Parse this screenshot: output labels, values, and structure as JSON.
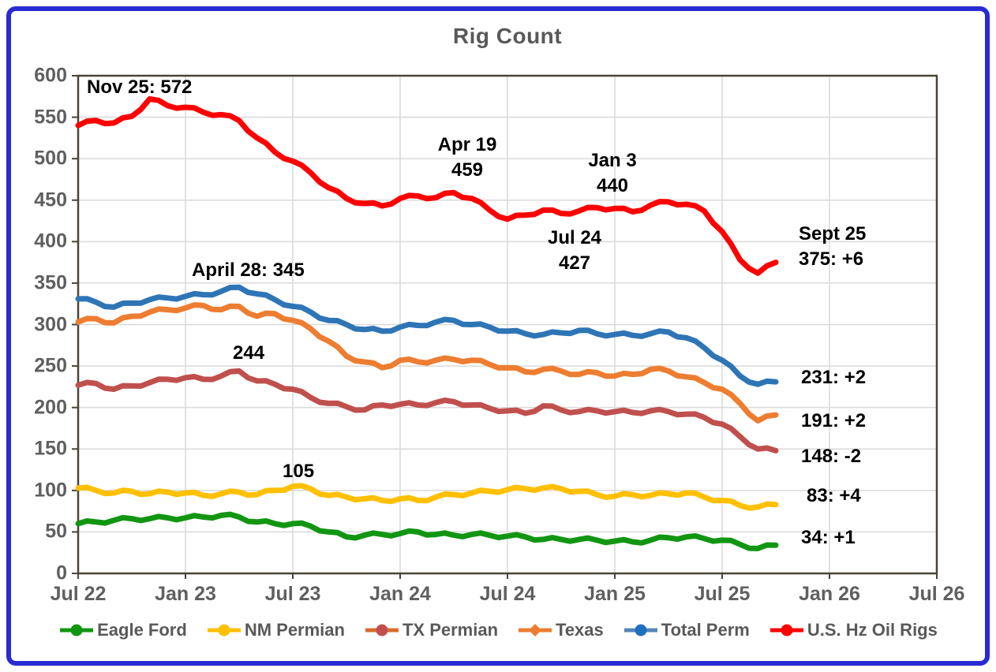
{
  "title": "Rig Count",
  "colors": {
    "frame_blue": "#2a2ad2",
    "axis": "#4a4537",
    "grid": "#d9d9d9",
    "tick_label": "#5f5f5f",
    "title_gray": "#595959",
    "annotation": "#000000"
  },
  "chart_data": {
    "type": "line",
    "title": "Rig Count",
    "grid": true,
    "legend_position": "bottom",
    "y_min": 0,
    "y_max": 600,
    "y_step": 50,
    "y_tick_labels": [
      "600",
      "550",
      "500",
      "450",
      "400",
      "350",
      "300",
      "250",
      "200",
      "150",
      "100",
      "50",
      "0"
    ],
    "x_tick_labels": [
      "Jul 22",
      "Jan 23",
      "Jul 23",
      "Jan 24",
      "Jul 24",
      "Jan 25",
      "Jul 25",
      "Jan 26",
      "Jul 26"
    ],
    "x_span_months": 48,
    "series": [
      {
        "name": "Eagle Ford",
        "color": "#129612",
        "marker": "circle",
        "values": [
          60,
          62,
          64,
          66,
          66,
          67,
          67,
          68,
          70,
          68,
          62,
          60,
          60,
          57,
          50,
          44,
          46,
          47,
          48,
          50,
          47,
          46,
          47,
          46,
          45,
          44,
          41,
          41,
          41,
          40,
          39,
          38,
          40,
          43,
          44,
          42,
          40,
          35,
          30,
          34
        ]
      },
      {
        "name": "NM Permian",
        "color": "#ffc000",
        "marker": "circle",
        "values": [
          103,
          100,
          97,
          99,
          96,
          98,
          97,
          94,
          96,
          98,
          95,
          100,
          105,
          102,
          94,
          92,
          90,
          88,
          90,
          88,
          92,
          95,
          97,
          99,
          101,
          102,
          103,
          102,
          99,
          95,
          93,
          95,
          94,
          96,
          97,
          92,
          88,
          82,
          80,
          83
        ]
      },
      {
        "name": "TX Permian",
        "color": "#c0504d",
        "marker": "circle",
        "values": [
          227,
          229,
          222,
          226,
          230,
          234,
          236,
          234,
          238,
          244,
          232,
          228,
          222,
          212,
          205,
          201,
          197,
          203,
          204,
          203,
          206,
          207,
          203,
          199,
          196,
          193,
          202,
          197,
          195,
          196,
          195,
          194,
          196,
          195,
          192,
          188,
          180,
          165,
          150,
          148
        ]
      },
      {
        "name": "Texas",
        "color": "#ed7d31",
        "marker": "diamond",
        "values": [
          303,
          307,
          302,
          310,
          315,
          318,
          320,
          323,
          318,
          322,
          310,
          313,
          305,
          295,
          280,
          262,
          255,
          248,
          257,
          255,
          257,
          258,
          257,
          252,
          248,
          243,
          246,
          244,
          240,
          242,
          238,
          240,
          246,
          244,
          237,
          230,
          222,
          205,
          184,
          191
        ]
      },
      {
        "name": "Total Perm",
        "color": "#2e75b6",
        "marker": "circle",
        "values": [
          331,
          327,
          321,
          326,
          330,
          332,
          334,
          336,
          340,
          345,
          337,
          330,
          322,
          315,
          305,
          300,
          294,
          292,
          297,
          299,
          303,
          305,
          300,
          297,
          292,
          289,
          288,
          290,
          293,
          289,
          288,
          287,
          289,
          291,
          284,
          272,
          257,
          238,
          228,
          231
        ]
      },
      {
        "name": "U.S. Hz Oil Rigs",
        "color": "#fe0000",
        "marker": "circle",
        "values": [
          540,
          546,
          543,
          551,
          572,
          564,
          562,
          556,
          553,
          546,
          525,
          508,
          497,
          483,
          465,
          452,
          446,
          443,
          452,
          455,
          453,
          459,
          452,
          438,
          427,
          432,
          438,
          434,
          437,
          441,
          440,
          436,
          444,
          448,
          445,
          437,
          412,
          378,
          362,
          375
        ]
      }
    ],
    "annotations": [
      {
        "id": "nov-25-peak",
        "text": "Nov 25: 572"
      },
      {
        "id": "apr-19",
        "text": "Apr 19\n459"
      },
      {
        "id": "jan-3",
        "text": "Jan 3\n440"
      },
      {
        "id": "jul-24",
        "text": "Jul 24\n427"
      },
      {
        "id": "sept-25",
        "text": "Sept 25\n375: +6"
      },
      {
        "id": "april-28-peak",
        "text": "April 28: 345"
      },
      {
        "id": "tx-perm-peak",
        "text": "244"
      },
      {
        "id": "nm-perm-peak",
        "text": "105"
      },
      {
        "id": "total-perm-latest",
        "text": "231: +2"
      },
      {
        "id": "texas-latest",
        "text": "191: +2"
      },
      {
        "id": "tx-perm-latest",
        "text": "148: -2"
      },
      {
        "id": "nm-perm-latest",
        "text": "83: +4"
      },
      {
        "id": "eagle-ford-latest",
        "text": "34: +1"
      }
    ]
  },
  "legend": {
    "items": [
      {
        "label": "Eagle Ford",
        "line_color": "#129612",
        "marker_color": "#129612",
        "marker": "circle"
      },
      {
        "label": "NM Permian",
        "line_color": "#ffc000",
        "marker_color": "#ffc000",
        "marker": "circle"
      },
      {
        "label": "TX Permian",
        "line_color": "#d96c2c",
        "marker_color": "#c0504d",
        "marker": "circle"
      },
      {
        "label": "Texas",
        "line_color": "#ed7d31",
        "marker_color": "#ed7d31",
        "marker": "diamond"
      },
      {
        "label": "Total Perm",
        "line_color": "#5585ba",
        "marker_color": "#1f6fc0",
        "marker": "circle"
      },
      {
        "label": "U.S. Hz Oil Rigs",
        "line_color": "#fe0000",
        "marker_color": "#fe0000",
        "marker": "circle"
      }
    ]
  }
}
